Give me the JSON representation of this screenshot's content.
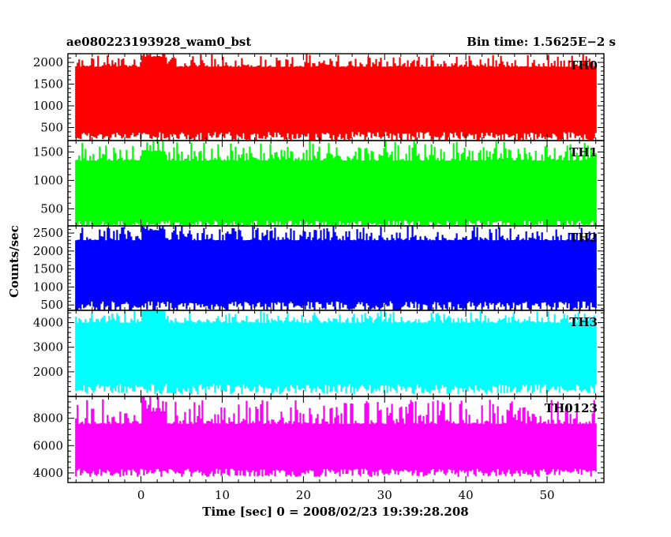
{
  "header": {
    "left_title": "ae080223193928_wam0_bst",
    "right_title": "Bin time: 1.5625E−2 s"
  },
  "chart_data": {
    "type": "line",
    "title": "ae080223193928_wam0_bst",
    "subtitle": "Bin time: 1.5625E−2 s",
    "xlabel": "Time [sec] 0 = 2008/02/23 19:39:28.208",
    "ylabel": "Counts/sec",
    "x_range": [
      -9,
      57
    ],
    "data_x_range": [
      -8,
      56
    ],
    "x_ticks": [
      0,
      10,
      20,
      30,
      40,
      50
    ],
    "grid": false,
    "legend": "none",
    "panels": [
      {
        "name": "TH0",
        "color": "#ff0000",
        "ylim": [
          200,
          2200
        ],
        "y_ticks": [
          500,
          1000,
          1500,
          2000
        ],
        "baseline": 1000,
        "low_envelope": 400,
        "high_envelope": 1900,
        "peak": 2200
      },
      {
        "name": "TH1",
        "color": "#00ff00",
        "ylim": [
          200,
          1700
        ],
        "y_ticks": [
          500,
          1000,
          1500
        ],
        "baseline": 800,
        "low_envelope": 300,
        "high_envelope": 1350,
        "peak": 1700
      },
      {
        "name": "TH2",
        "color": "#0000ff",
        "ylim": [
          350,
          2700
        ],
        "y_ticks": [
          500,
          1000,
          1500,
          2000,
          2500
        ],
        "baseline": 1400,
        "low_envelope": 600,
        "high_envelope": 2300,
        "peak": 2700
      },
      {
        "name": "TH3",
        "color": "#00ffff",
        "ylim": [
          1000,
          4500
        ],
        "y_ticks": [
          2000,
          3000,
          4000
        ],
        "baseline": 2700,
        "low_envelope": 1500,
        "high_envelope": 4000,
        "peak": 4500
      },
      {
        "name": "TH0123",
        "color": "#ff00ff",
        "ylim": [
          3300,
          9600
        ],
        "y_ticks": [
          4000,
          6000,
          8000
        ],
        "baseline": 6000,
        "low_envelope": 4300,
        "high_envelope": 7600,
        "peak": 9400
      }
    ]
  }
}
